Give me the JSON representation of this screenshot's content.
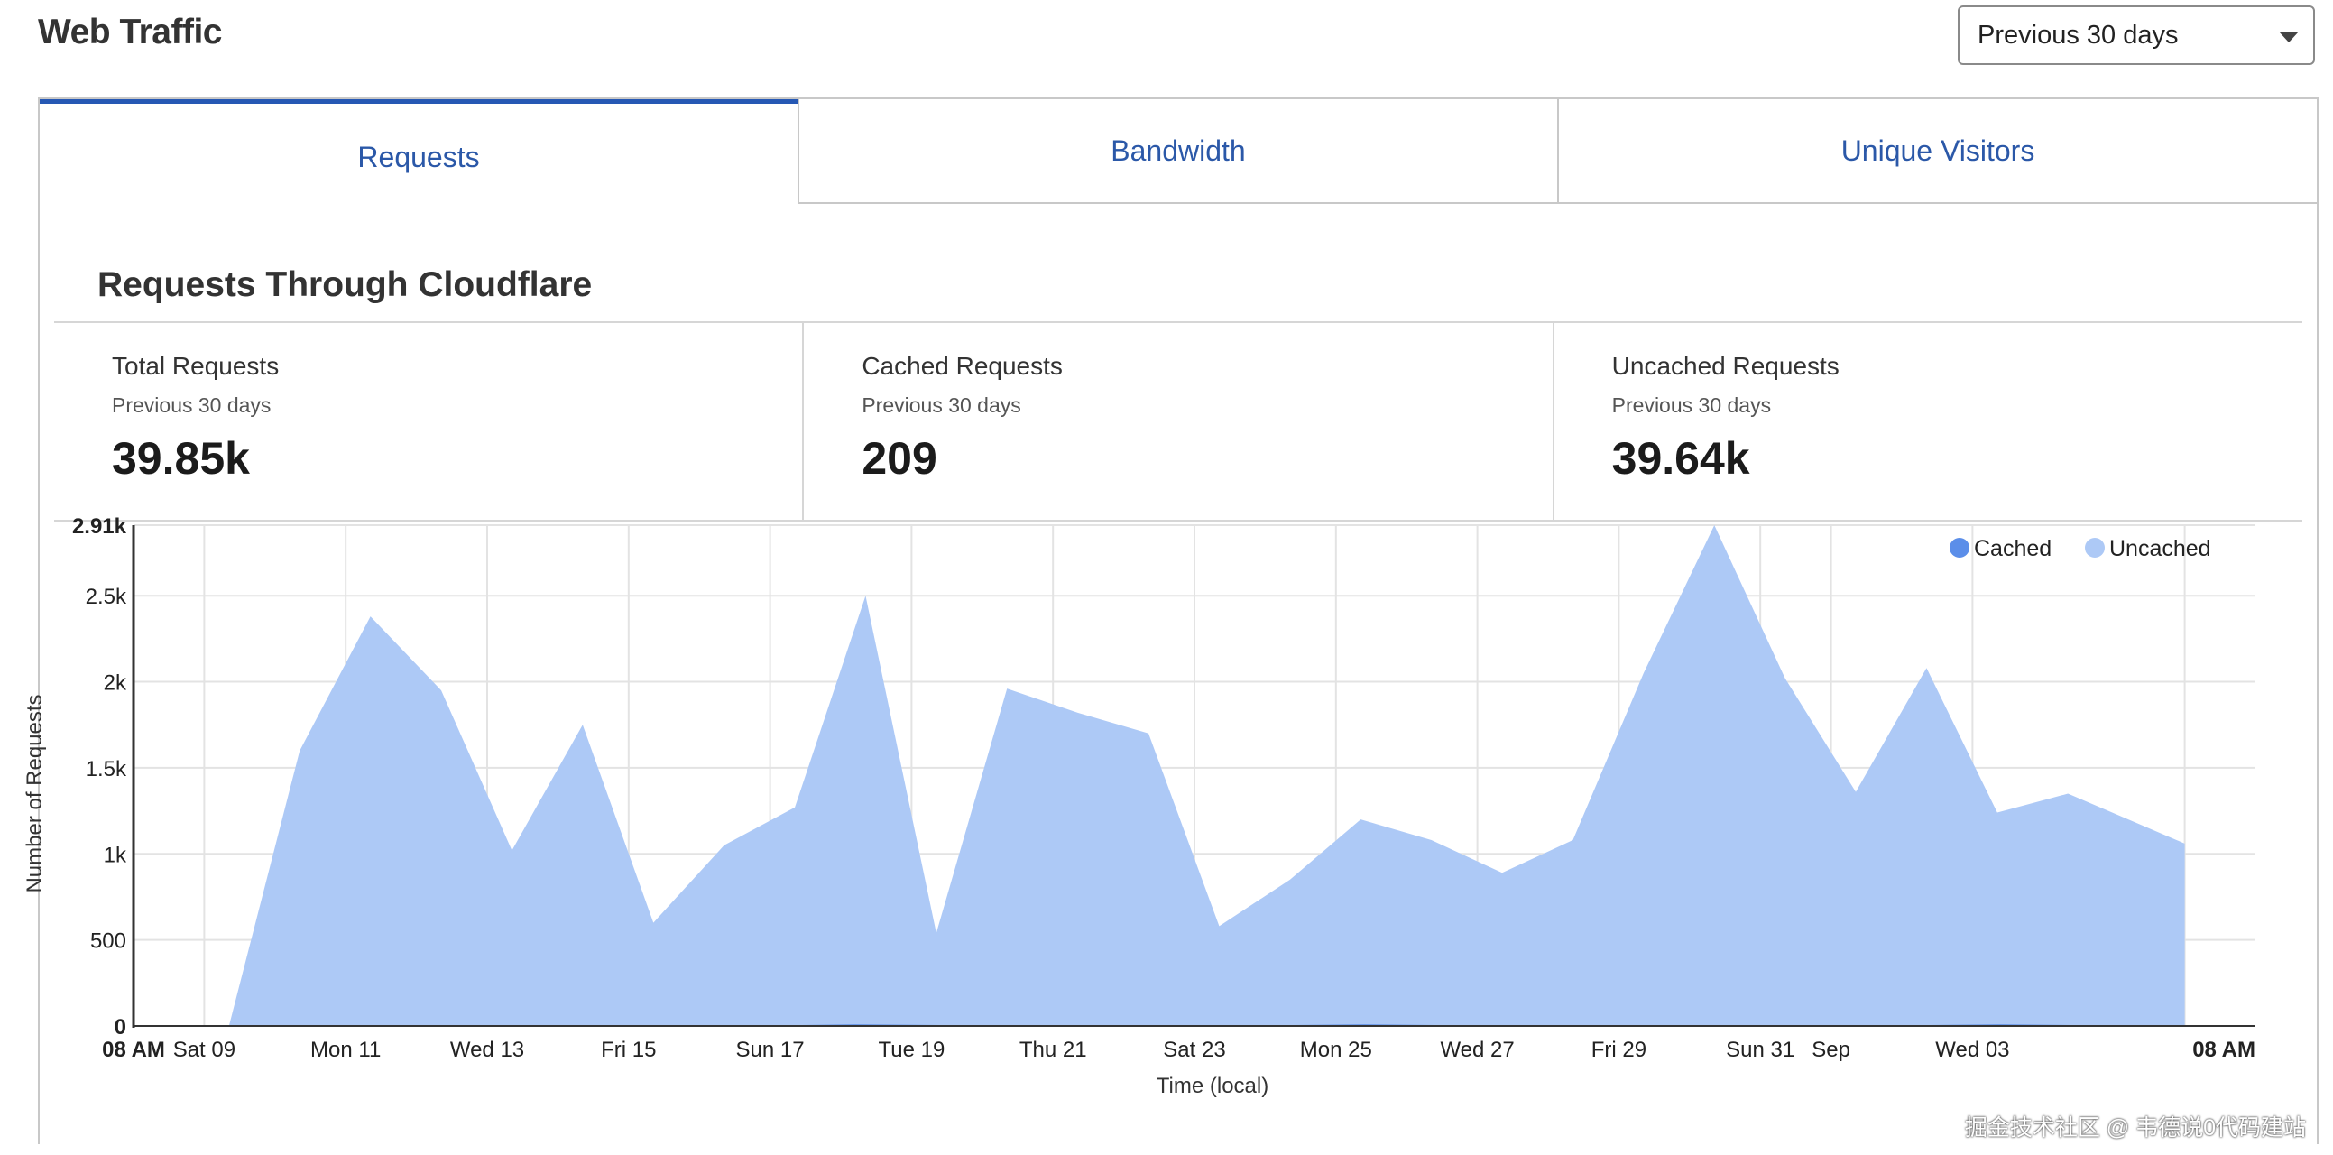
{
  "header": {
    "title": "Web Traffic",
    "range_select": {
      "selected": "Previous 30 days",
      "icon": "chevron-down-icon"
    }
  },
  "tabs": [
    {
      "label": "Requests",
      "active": true
    },
    {
      "label": "Bandwidth",
      "active": false
    },
    {
      "label": "Unique Visitors",
      "active": false
    }
  ],
  "section": {
    "title": "Requests Through Cloudflare"
  },
  "stats": [
    {
      "label": "Total Requests",
      "period": "Previous 30 days",
      "value": "39.85k"
    },
    {
      "label": "Cached Requests",
      "period": "Previous 30 days",
      "value": "209"
    },
    {
      "label": "Uncached Requests",
      "period": "Previous 30 days",
      "value": "39.64k"
    }
  ],
  "chart_data": {
    "type": "area",
    "ylabel": "Number of Requests",
    "xlabel": "Time (local)",
    "ylim": [
      0,
      2910
    ],
    "y_ticks": [
      {
        "value": 0,
        "label": "0"
      },
      {
        "value": 500,
        "label": "500"
      },
      {
        "value": 1000,
        "label": "1k"
      },
      {
        "value": 1500,
        "label": "1.5k"
      },
      {
        "value": 2000,
        "label": "2k"
      },
      {
        "value": 2500,
        "label": "2.5k"
      },
      {
        "value": 2910,
        "label": "2.91k"
      }
    ],
    "x_range": [
      0,
      30
    ],
    "x_ticks": [
      {
        "x": 0,
        "label": "08 AM",
        "bold": true
      },
      {
        "x": 1,
        "label": "Sat 09"
      },
      {
        "x": 3,
        "label": "Mon 11"
      },
      {
        "x": 5,
        "label": "Wed 13"
      },
      {
        "x": 7,
        "label": "Fri 15"
      },
      {
        "x": 9,
        "label": "Sun 17"
      },
      {
        "x": 11,
        "label": "Tue 19"
      },
      {
        "x": 13,
        "label": "Thu 21"
      },
      {
        "x": 15,
        "label": "Sat 23"
      },
      {
        "x": 17,
        "label": "Mon 25"
      },
      {
        "x": 19,
        "label": "Wed 27"
      },
      {
        "x": 21,
        "label": "Fri 29"
      },
      {
        "x": 23,
        "label": "Sun 31"
      },
      {
        "x": 24,
        "label": "Sep"
      },
      {
        "x": 26,
        "label": "Wed 03"
      },
      {
        "x": 29,
        "label": "08 AM",
        "bold": true
      }
    ],
    "grid": true,
    "legend_position": "top-right",
    "series": [
      {
        "name": "Cached",
        "color": "#5b8ee9",
        "points": [
          [
            0,
            0
          ],
          [
            1,
            0
          ],
          [
            1.4,
            0
          ],
          [
            2.4,
            5
          ],
          [
            3.4,
            5
          ],
          [
            4.4,
            5
          ],
          [
            5.4,
            5
          ],
          [
            6.4,
            5
          ],
          [
            7.4,
            5
          ],
          [
            8.4,
            5
          ],
          [
            9.4,
            5
          ],
          [
            10.2,
            10
          ],
          [
            11.4,
            5
          ],
          [
            12.4,
            5
          ],
          [
            13.4,
            5
          ],
          [
            14.4,
            5
          ],
          [
            15.4,
            5
          ],
          [
            16.4,
            5
          ],
          [
            17.4,
            10
          ],
          [
            18.4,
            5
          ],
          [
            19.4,
            5
          ],
          [
            20.4,
            5
          ],
          [
            21.4,
            5
          ],
          [
            22.4,
            5
          ],
          [
            23.4,
            5
          ],
          [
            24.4,
            5
          ],
          [
            25.4,
            5
          ],
          [
            26.4,
            10
          ],
          [
            27.4,
            5
          ],
          [
            29,
            5
          ]
        ]
      },
      {
        "name": "Uncached",
        "color": "#adc9f6",
        "points": [
          [
            0,
            0
          ],
          [
            1,
            0
          ],
          [
            1.35,
            0
          ],
          [
            2.35,
            1600
          ],
          [
            3.35,
            2380
          ],
          [
            4.35,
            1950
          ],
          [
            5.35,
            1020
          ],
          [
            6.35,
            1750
          ],
          [
            7.35,
            600
          ],
          [
            8.35,
            1050
          ],
          [
            9.35,
            1270
          ],
          [
            10.35,
            2500
          ],
          [
            11.35,
            540
          ],
          [
            12.35,
            1960
          ],
          [
            13.35,
            1820
          ],
          [
            14.35,
            1700
          ],
          [
            15.35,
            580
          ],
          [
            16.35,
            850
          ],
          [
            17.35,
            1200
          ],
          [
            18.35,
            1080
          ],
          [
            19.35,
            890
          ],
          [
            20.35,
            1080
          ],
          [
            21.35,
            2050
          ],
          [
            22.35,
            2910
          ],
          [
            23.35,
            2020
          ],
          [
            24.35,
            1360
          ],
          [
            25.35,
            2080
          ],
          [
            26.35,
            1240
          ],
          [
            27.35,
            1350
          ],
          [
            29,
            1060
          ]
        ]
      }
    ]
  },
  "watermark": "掘金技术社区 @ 韦德说0代码建站"
}
